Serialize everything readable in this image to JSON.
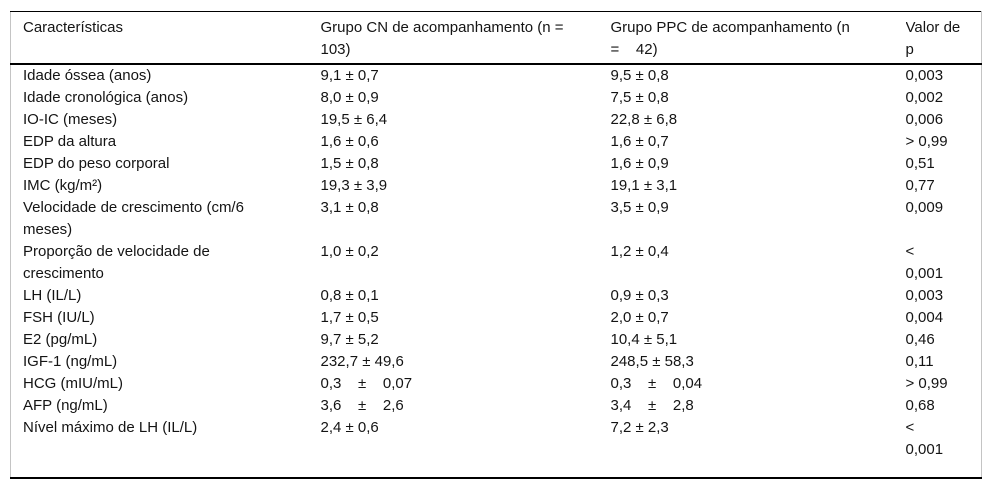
{
  "colors": {
    "background": "#ffffff",
    "text": "#141414",
    "rule_dark": "#000000",
    "rule_light": "#c4c4c4"
  },
  "table": {
    "headers": [
      "Características",
      "Grupo CN de acompanhamento (n =\n103)",
      "Grupo PPC de acompanhamento (n\n=    42)",
      "Valor de\np"
    ],
    "rows": [
      {
        "label": "Idade óssea (anos)",
        "cn": "9,1 ± 0,7",
        "ppc": "9,5 ± 0,8",
        "p": "0,003"
      },
      {
        "label": "Idade cronológica (anos)",
        "cn": "8,0 ± 0,9",
        "ppc": "7,5 ± 0,8",
        "p": "0,002"
      },
      {
        "label": "IO-IC (meses)",
        "cn": "19,5 ± 6,4",
        "ppc": "22,8 ± 6,8",
        "p": "0,006"
      },
      {
        "label": "EDP da altura",
        "cn": "1,6 ± 0,6",
        "ppc": "1,6 ± 0,7",
        "p": "> 0,99"
      },
      {
        "label": "EDP do peso corporal",
        "cn": "1,5 ± 0,8",
        "ppc": "1,6 ± 0,9",
        "p": "0,51"
      },
      {
        "label": "IMC (kg/m²)",
        "cn": "19,3 ± 3,9",
        "ppc": "19,1 ± 3,1",
        "p": "0,77"
      },
      {
        "label": "Velocidade de crescimento (cm/6\nmeses)",
        "cn": "3,1 ± 0,8",
        "ppc": "3,5 ± 0,9",
        "p": "0,009"
      },
      {
        "label": "Proporção de velocidade de\ncrescimento",
        "cn": "1,0 ± 0,2",
        "ppc": "1,2 ± 0,4",
        "p": "<\n0,001"
      },
      {
        "label": "LH (IL/L)",
        "cn": "0,8 ± 0,1",
        "ppc": "0,9 ± 0,3",
        "p": "0,003"
      },
      {
        "label": "FSH (IU/L)",
        "cn": "1,7 ± 0,5",
        "ppc": "2,0 ± 0,7",
        "p": "0,004"
      },
      {
        "label": "E2 (pg/mL)",
        "cn": "9,7 ± 5,2",
        "ppc": "10,4 ± 5,1",
        "p": "0,46"
      },
      {
        "label": "IGF-1 (ng/mL)",
        "cn": "232,7 ± 49,6",
        "ppc": "248,5 ± 58,3",
        "p": "0,11"
      },
      {
        "label": "HCG (mIU/mL)",
        "cn": "0,3    ±    0,07",
        "ppc": "0,3    ±    0,04",
        "p": "> 0,99"
      },
      {
        "label": "AFP (ng/mL)",
        "cn": "3,6    ±    2,6",
        "ppc": "3,4    ±    2,8",
        "p": "0,68"
      },
      {
        "label": "Nível máximo de LH (IL/L)",
        "cn": "2,4 ± 0,6",
        "ppc": "7,2 ± 2,3",
        "p": "<\n0,001"
      }
    ]
  }
}
